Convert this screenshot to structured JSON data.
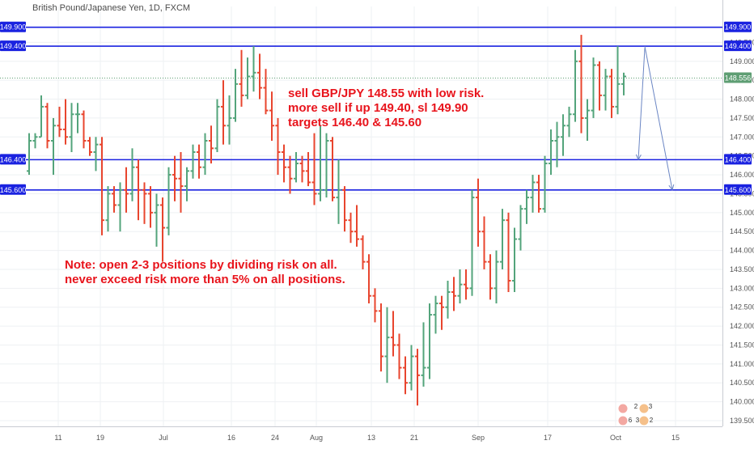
{
  "chart_data": {
    "type": "ohlc",
    "title": "British Pound/Japanese Yen, 1D, FXCM",
    "x_labels": [
      "11",
      "19",
      "Jul",
      "16",
      "24",
      "Aug",
      "13",
      "21",
      "Sep",
      "17",
      "Oct",
      "15"
    ],
    "y_ticks": [
      "149.500",
      "149.000",
      "148.500",
      "148.000",
      "147.500",
      "147.000",
      "146.500",
      "146.000",
      "145.500",
      "145.000",
      "144.500",
      "144.000",
      "143.500",
      "143.000",
      "142.500",
      "142.000",
      "141.500",
      "141.000",
      "140.500",
      "140.000",
      "139.500"
    ],
    "ylim": [
      139.35,
      150.45
    ],
    "last_price": 148.556,
    "last_price_label": "148.556",
    "levels": [
      {
        "value": 149.9,
        "label": "149.900"
      },
      {
        "value": 149.4,
        "label": "149.400"
      },
      {
        "value": 146.4,
        "label": "146.400"
      },
      {
        "value": 145.6,
        "label": "145.600"
      }
    ],
    "annotations": [
      {
        "text": "sell GBP/JPY 148.55 with low risk.",
        "color": "#e8141c"
      },
      {
        "text": "more sell if up 149.40, sl 149.90",
        "color": "#e8141c"
      },
      {
        "text": "targets 146.40 & 145.60",
        "color": "#e8141c"
      },
      {
        "text": "Note: open 2-3 positions by dividing risk on all.",
        "color": "#e8141c"
      },
      {
        "text": "never exceed risk more than 5% on all positions.",
        "color": "#e8141c"
      }
    ],
    "projection_arrows": [
      {
        "from": [
          149.35,
          0
        ],
        "to": [
          146.4,
          1
        ]
      },
      {
        "from": [
          149.4,
          0
        ],
        "to": [
          145.6,
          1
        ]
      }
    ],
    "badges": [
      "2",
      "3",
      "6",
      "3",
      "2"
    ],
    "colors": {
      "up": "#53a47b",
      "down": "#e8452e",
      "level": "#1a22e0",
      "last": "#5e9e73",
      "arrow": "#6b86c4"
    },
    "grid": true,
    "bars": [
      [
        146.1,
        147.1,
        146.0,
        146.9
      ],
      [
        146.9,
        147.1,
        146.7,
        147.0
      ],
      [
        147.0,
        148.1,
        147.0,
        147.8
      ],
      [
        147.8,
        147.9,
        146.7,
        146.9
      ],
      [
        146.9,
        147.5,
        146.0,
        147.3
      ],
      [
        147.3,
        147.8,
        147.0,
        147.2
      ],
      [
        147.2,
        148.0,
        146.8,
        147.0
      ],
      [
        147.0,
        147.9,
        146.6,
        147.6
      ],
      [
        147.6,
        147.9,
        147.1,
        147.6
      ],
      [
        147.6,
        147.7,
        146.7,
        146.9
      ],
      [
        146.9,
        147.0,
        146.5,
        146.6
      ],
      [
        146.6,
        147.0,
        146.1,
        146.8
      ],
      [
        146.8,
        147.0,
        144.4,
        144.8
      ],
      [
        144.8,
        145.7,
        144.5,
        145.5
      ],
      [
        145.5,
        145.7,
        145.0,
        145.2
      ],
      [
        145.2,
        145.8,
        144.5,
        145.6
      ],
      [
        145.6,
        146.2,
        145.0,
        145.5
      ],
      [
        145.5,
        146.7,
        145.3,
        146.2
      ],
      [
        146.2,
        146.4,
        144.8,
        145.6
      ],
      [
        145.6,
        145.8,
        144.7,
        145.5
      ],
      [
        145.5,
        145.7,
        144.6,
        145.0
      ],
      [
        145.0,
        145.5,
        144.1,
        145.2
      ],
      [
        145.2,
        145.4,
        143.7,
        144.6
      ],
      [
        144.6,
        146.2,
        144.4,
        146.0
      ],
      [
        146.0,
        146.5,
        145.3,
        145.9
      ],
      [
        145.9,
        146.6,
        145.0,
        145.7
      ],
      [
        145.7,
        146.2,
        145.3,
        146.1
      ],
      [
        146.1,
        146.8,
        145.9,
        146.6
      ],
      [
        146.6,
        146.8,
        145.9,
        146.2
      ],
      [
        146.2,
        147.1,
        146.0,
        146.9
      ],
      [
        146.9,
        147.3,
        146.3,
        146.7
      ],
      [
        146.7,
        148.0,
        146.6,
        147.8
      ],
      [
        147.8,
        148.5,
        146.8,
        147.3
      ],
      [
        147.3,
        148.1,
        146.8,
        147.5
      ],
      [
        147.5,
        148.8,
        147.4,
        148.4
      ],
      [
        148.4,
        149.3,
        147.8,
        148.1
      ],
      [
        148.1,
        149.1,
        148.0,
        148.6
      ],
      [
        148.6,
        149.4,
        148.2,
        148.7
      ],
      [
        148.7,
        149.2,
        148.0,
        148.3
      ],
      [
        148.3,
        148.8,
        147.6,
        147.7
      ],
      [
        147.7,
        148.2,
        146.9,
        147.3
      ],
      [
        147.3,
        147.5,
        146.0,
        146.6
      ],
      [
        146.6,
        146.8,
        145.8,
        146.2
      ],
      [
        146.2,
        146.5,
        145.5,
        145.9
      ],
      [
        145.9,
        146.6,
        145.8,
        146.3
      ],
      [
        146.3,
        146.5,
        145.8,
        146.1
      ],
      [
        146.1,
        146.6,
        145.7,
        145.8
      ],
      [
        145.8,
        147.1,
        145.2,
        145.5
      ],
      [
        145.5,
        147.3,
        145.3,
        145.6
      ],
      [
        145.6,
        147.1,
        145.4,
        146.9
      ],
      [
        146.9,
        147.0,
        145.3,
        145.4
      ],
      [
        145.4,
        146.4,
        144.7,
        145.6
      ],
      [
        145.6,
        145.7,
        144.5,
        144.8
      ],
      [
        144.8,
        145.0,
        144.2,
        144.5
      ],
      [
        144.5,
        145.2,
        144.1,
        144.3
      ],
      [
        144.3,
        144.4,
        143.5,
        143.7
      ],
      [
        143.7,
        143.9,
        142.6,
        142.8
      ],
      [
        142.8,
        143.0,
        142.1,
        142.4
      ],
      [
        142.4,
        142.6,
        140.8,
        141.2
      ],
      [
        141.2,
        142.5,
        140.5,
        141.7
      ],
      [
        141.7,
        142.4,
        141.2,
        141.5
      ],
      [
        141.5,
        141.8,
        140.6,
        140.9
      ],
      [
        140.9,
        141.2,
        140.2,
        140.5
      ],
      [
        140.5,
        141.5,
        140.3,
        141.2
      ],
      [
        141.2,
        141.4,
        139.9,
        140.7
      ],
      [
        140.7,
        142.1,
        140.4,
        140.9
      ],
      [
        140.9,
        142.6,
        140.6,
        142.3
      ],
      [
        142.3,
        142.8,
        141.8,
        142.6
      ],
      [
        142.6,
        142.8,
        141.9,
        142.5
      ],
      [
        142.5,
        143.2,
        142.2,
        142.9
      ],
      [
        142.9,
        143.3,
        142.4,
        142.8
      ],
      [
        142.8,
        143.5,
        142.6,
        143.1
      ],
      [
        143.1,
        143.5,
        142.7,
        143.0
      ],
      [
        143.0,
        145.6,
        142.8,
        145.4
      ],
      [
        145.4,
        145.9,
        144.1,
        144.5
      ],
      [
        144.5,
        144.9,
        143.5,
        143.7
      ],
      [
        143.7,
        143.9,
        142.7,
        143.0
      ],
      [
        143.0,
        144.0,
        142.6,
        143.7
      ],
      [
        143.7,
        145.1,
        143.5,
        144.8
      ],
      [
        144.8,
        145.0,
        142.9,
        143.2
      ],
      [
        143.2,
        144.6,
        142.9,
        144.3
      ],
      [
        144.3,
        145.2,
        144.0,
        145.1
      ],
      [
        145.1,
        145.6,
        144.7,
        145.4
      ],
      [
        145.4,
        146.0,
        145.0,
        145.8
      ],
      [
        145.8,
        146.0,
        145.0,
        145.1
      ],
      [
        145.1,
        146.5,
        145.0,
        146.3
      ],
      [
        146.3,
        147.2,
        146.0,
        146.9
      ],
      [
        146.9,
        147.4,
        146.2,
        147.0
      ],
      [
        147.0,
        147.6,
        146.5,
        147.3
      ],
      [
        147.3,
        147.8,
        147.0,
        147.6
      ],
      [
        147.6,
        149.3,
        147.4,
        149.0
      ],
      [
        149.0,
        149.7,
        147.1,
        147.5
      ],
      [
        147.5,
        148.0,
        146.9,
        147.7
      ],
      [
        147.7,
        149.1,
        147.5,
        148.9
      ],
      [
        148.9,
        149.0,
        147.7,
        148.1
      ],
      [
        148.1,
        148.8,
        147.7,
        148.6
      ],
      [
        148.6,
        148.8,
        147.5,
        147.8
      ],
      [
        147.8,
        149.4,
        147.6,
        148.4
      ],
      [
        148.4,
        148.7,
        148.1,
        148.6
      ]
    ]
  }
}
